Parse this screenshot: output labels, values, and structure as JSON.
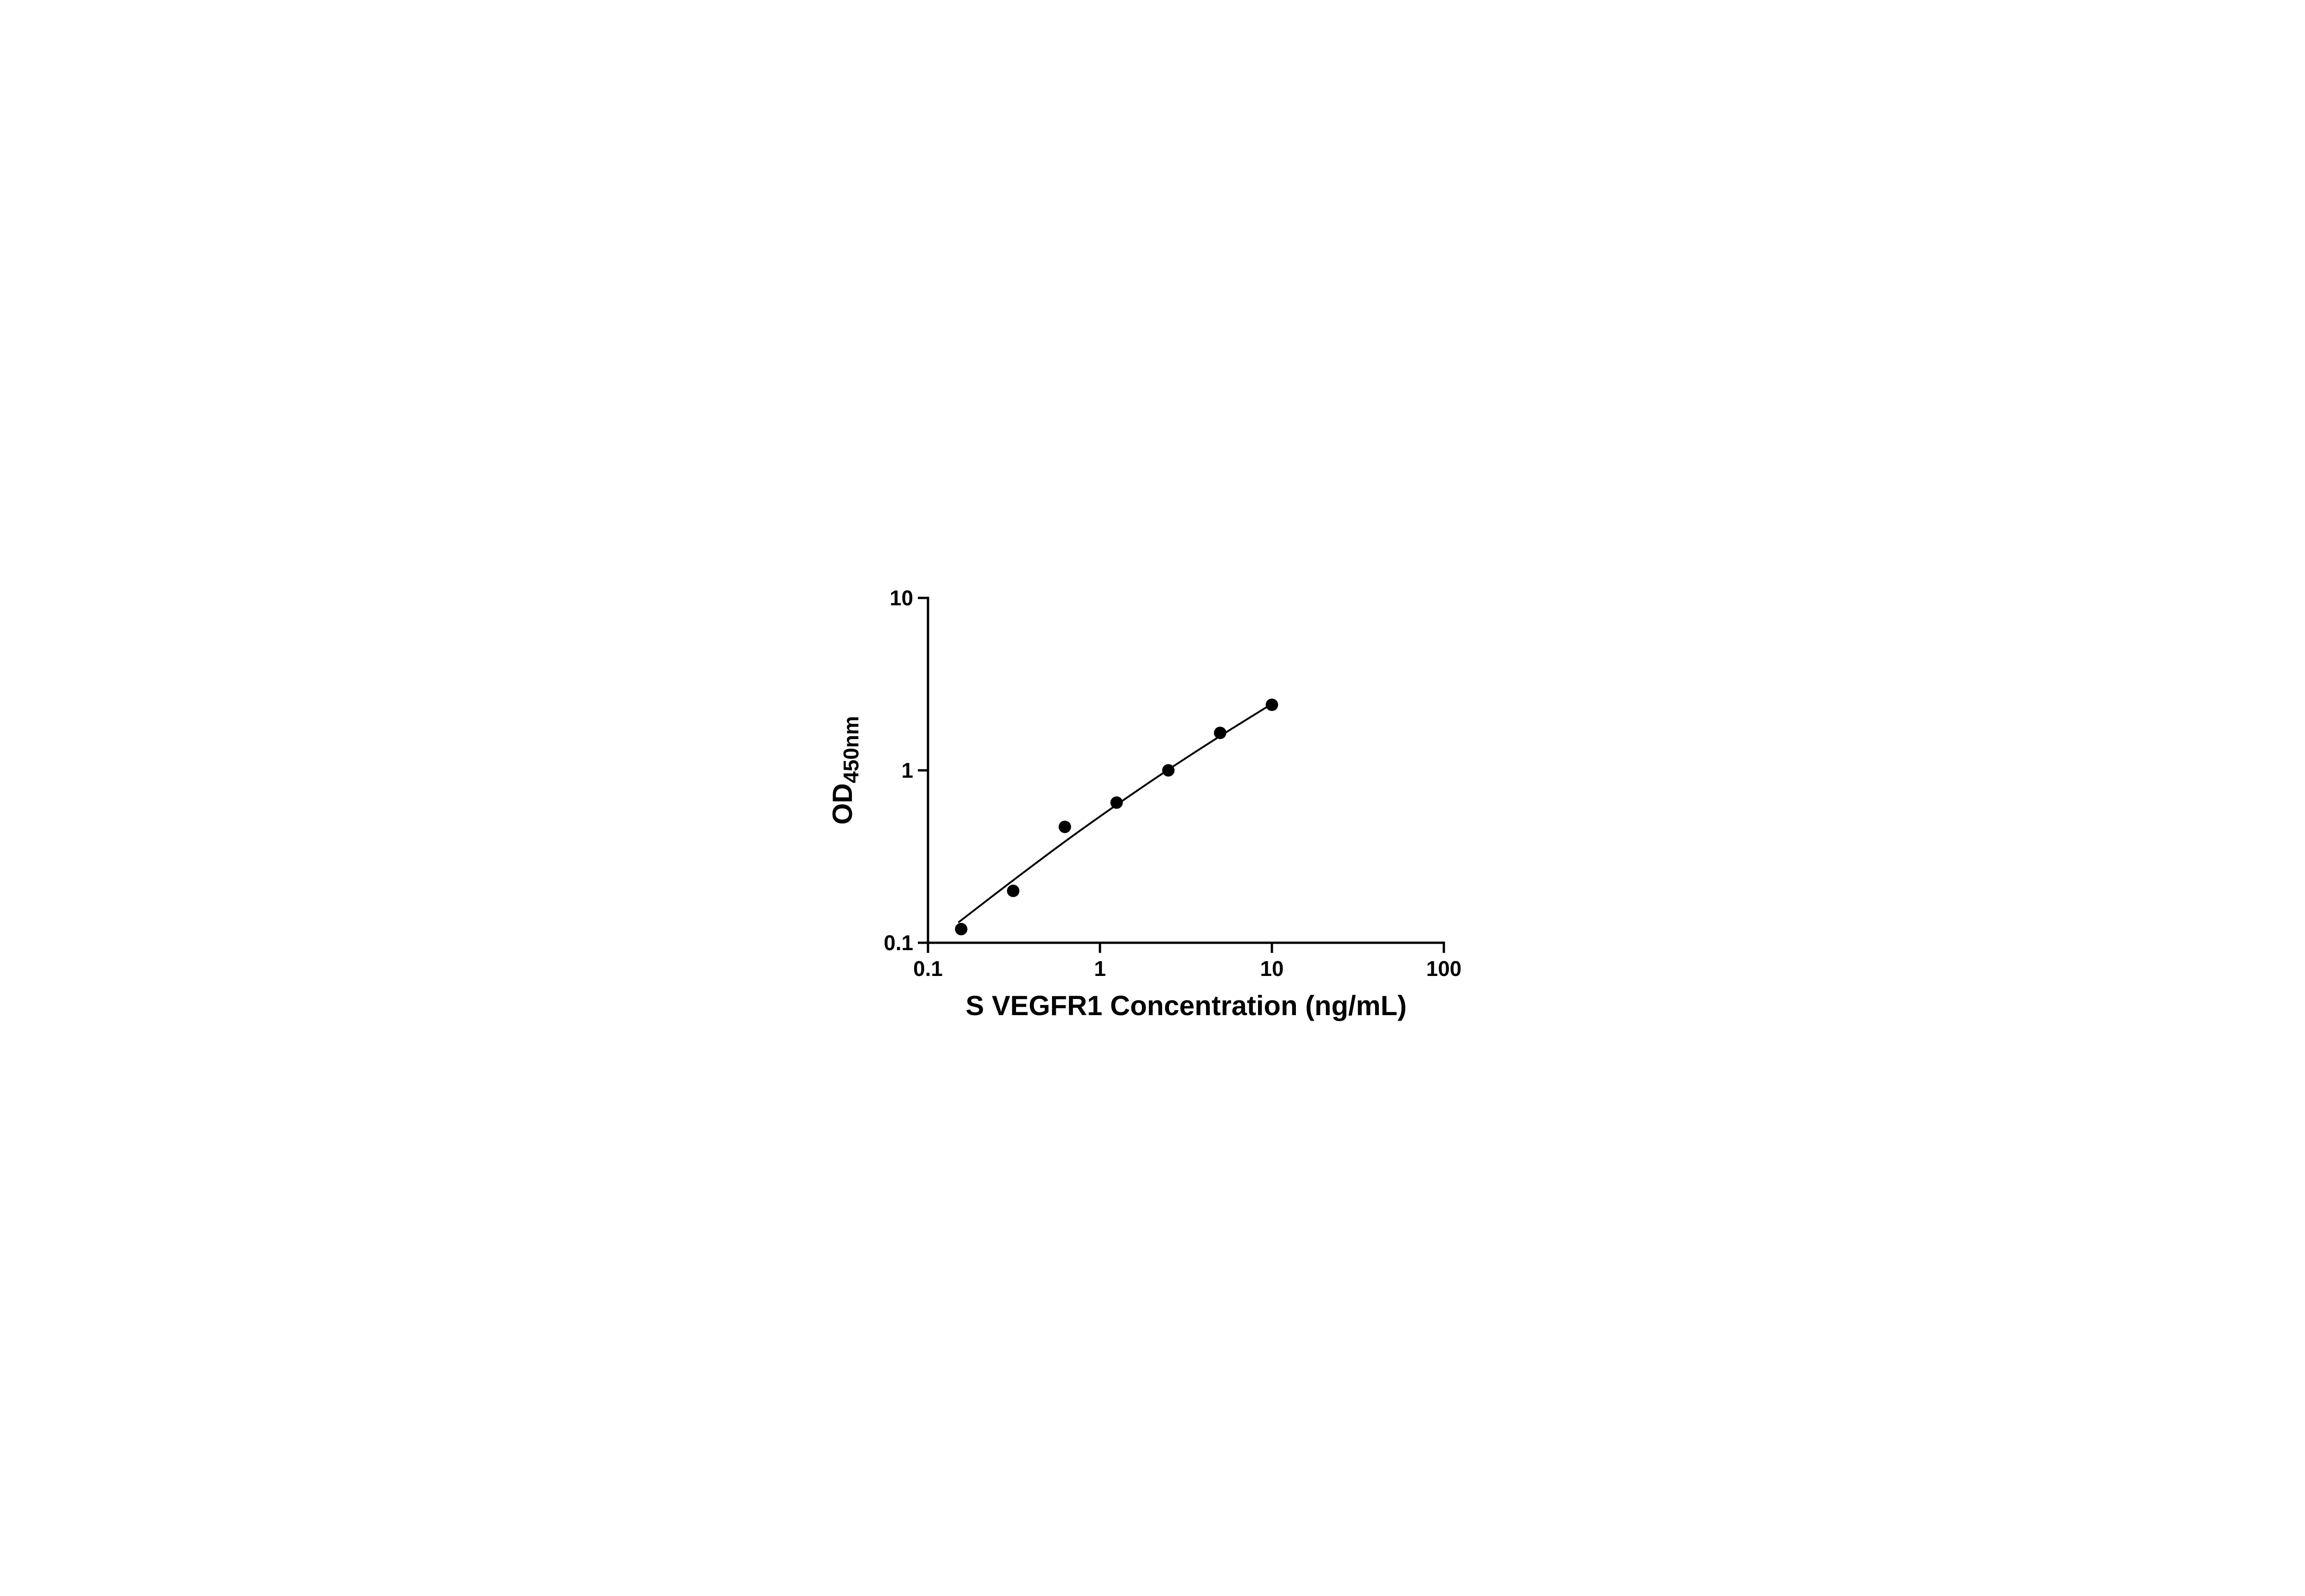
{
  "page": {
    "background": "#ffffff"
  },
  "chart_data": {
    "type": "scatter",
    "title": "",
    "xlabel": "S VEGFR1 Concentration (ng/mL)",
    "ylabel": "OD450nm",
    "ylabel_main": "OD",
    "ylabel_subscript": "450nm",
    "x_scale": "log10",
    "y_scale": "log10",
    "xlim": [
      0.1,
      100
    ],
    "ylim": [
      0.1,
      10
    ],
    "x_ticks": {
      "values": [
        0.1,
        1,
        10,
        100
      ],
      "labels": [
        "0.1",
        "1",
        "10",
        "100"
      ]
    },
    "y_ticks": {
      "values": [
        0.1,
        1,
        10
      ],
      "labels": [
        "0.1",
        "1",
        "10"
      ]
    },
    "grid": false,
    "legend": "none",
    "axis_color": "#000000",
    "text_color": "#000000",
    "series": [
      {
        "marker": "filled-circle",
        "color": "#000000",
        "points": [
          {
            "x": 0.156,
            "y": 0.12
          },
          {
            "x": 0.313,
            "y": 0.2
          },
          {
            "x": 0.625,
            "y": 0.47
          },
          {
            "x": 1.25,
            "y": 0.65
          },
          {
            "x": 2.5,
            "y": 1.0
          },
          {
            "x": 5,
            "y": 1.65
          },
          {
            "x": 10,
            "y": 2.4
          }
        ]
      }
    ],
    "trend_line": {
      "type": "smooth-fit",
      "color": "#000000",
      "points": [
        {
          "x": 0.15,
          "y": 0.131
        },
        {
          "x": 0.3,
          "y": 0.223
        },
        {
          "x": 0.625,
          "y": 0.386
        },
        {
          "x": 1.25,
          "y": 0.631
        },
        {
          "x": 2.5,
          "y": 1.01
        },
        {
          "x": 5,
          "y": 1.58
        },
        {
          "x": 10,
          "y": 2.43
        }
      ]
    }
  }
}
